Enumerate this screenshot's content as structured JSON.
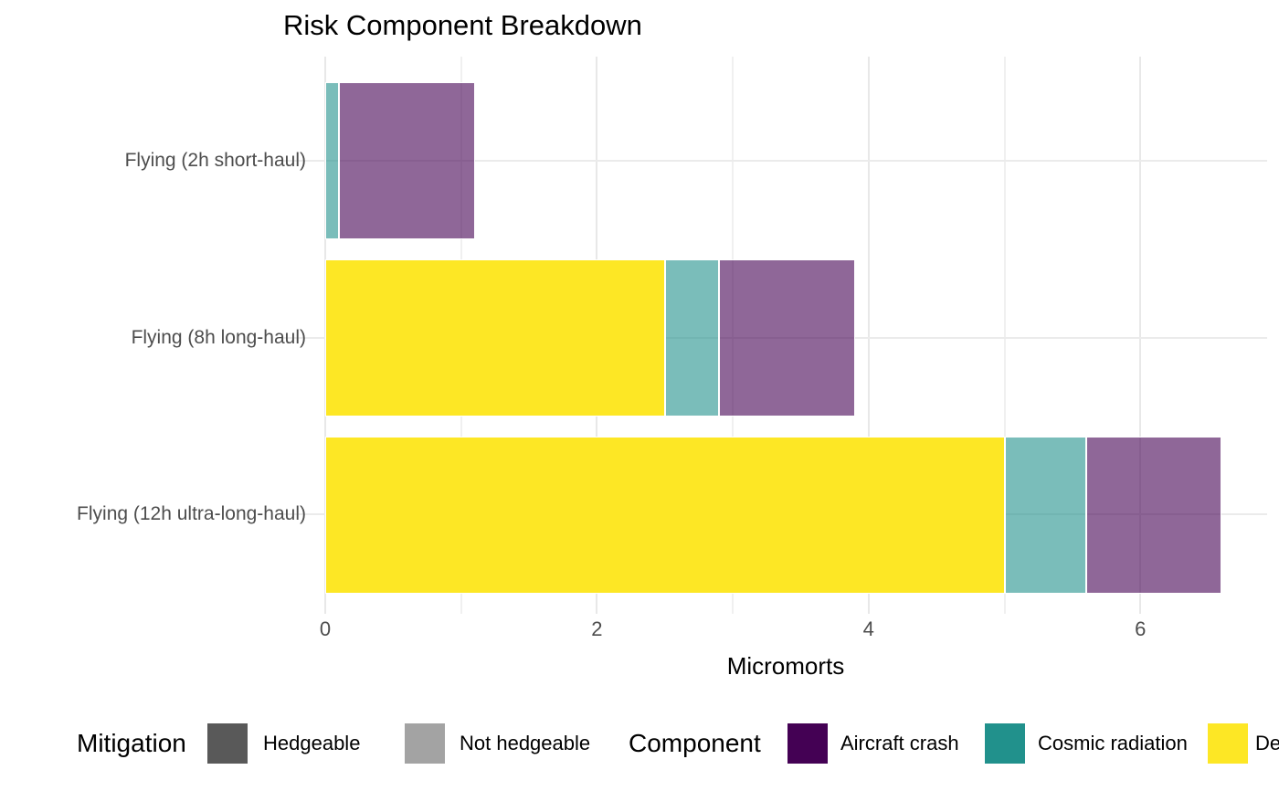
{
  "chart_data": {
    "type": "bar",
    "orientation": "horizontal",
    "stacked": true,
    "title": "Risk Component Breakdown",
    "xlabel": "Micromorts",
    "xlim": [
      0,
      6.9
    ],
    "x_ticks": [
      0,
      2,
      4,
      6
    ],
    "x_minor_gridlines": [
      1,
      3,
      5
    ],
    "grid": "vertical major and minor gridlines, light gray; horizontal gridline per category",
    "legend_position": "bottom",
    "categories": [
      "Flying (2h short-haul)",
      "Flying (8h long-haul)",
      "Flying (12h ultra-long-haul)"
    ],
    "series": [
      {
        "name": "De",
        "label_truncated_by_canvas": true,
        "legend_color": "#FDE725",
        "bar_fill": "rgba(253,231,37,1)",
        "mitigation": "Hedgeable",
        "values": [
          0,
          2.5,
          5.0
        ]
      },
      {
        "name": "Cosmic radiation",
        "legend_color": "#21918C",
        "bar_fill": "rgba(33,145,140,0.6)",
        "mitigation": "Not hedgeable",
        "values": [
          0.1,
          0.4,
          0.6
        ]
      },
      {
        "name": "Aircraft crash",
        "legend_color": "#440154",
        "bar_fill": "rgba(68,1,84,0.6)",
        "mitigation": "Not hedgeable",
        "values": [
          1.0,
          1.0,
          1.0
        ]
      }
    ],
    "stack_order_left_to_right": [
      "De",
      "Cosmic radiation",
      "Aircraft crash"
    ],
    "totals": [
      1.1,
      3.9,
      6.6
    ]
  },
  "axes": {
    "x_label": "Micromorts",
    "x_tick_labels": [
      "0",
      "2",
      "4",
      "6"
    ],
    "y_labels": [
      "Flying (2h short-haul)",
      "Flying (8h long-haul)",
      "Flying (12h ultra-long-haul)"
    ]
  },
  "legend": {
    "groups": [
      {
        "id": "mitigation",
        "title": "Mitigation",
        "items": [
          {
            "label": "Hedgeable",
            "color": "#595959"
          },
          {
            "label": "Not hedgeable",
            "color": "#a3a3a3"
          }
        ]
      },
      {
        "id": "component",
        "title": "Component",
        "items": [
          {
            "label": "Aircraft crash",
            "color": "#440154"
          },
          {
            "label": "Cosmic radiation",
            "color": "#21918C"
          },
          {
            "label": "De",
            "color": "#FDE725",
            "truncated": true
          }
        ]
      }
    ]
  },
  "colors": {
    "background": "#ffffff",
    "grid_major": "#e8e8e8",
    "grid_minor": "#f0f0f0",
    "axis_text": "#4d4d4d",
    "text": "#000000"
  }
}
